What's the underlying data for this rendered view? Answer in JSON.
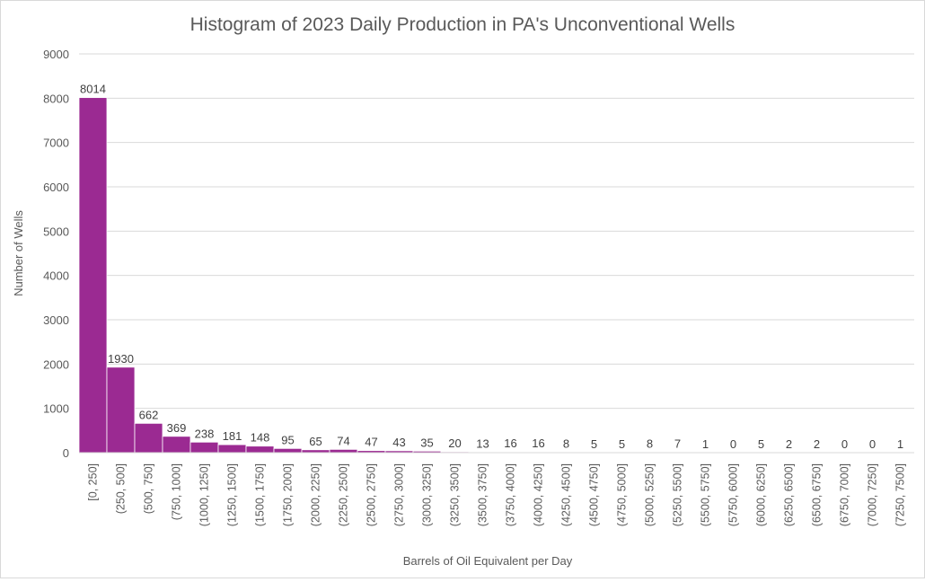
{
  "chart_data": {
    "type": "bar",
    "title": "Histogram of 2023 Daily Production in PA's Unconventional Wells",
    "xlabel": "Barrels of Oil Equivalent per Day",
    "ylabel": "Number of Wells",
    "ylim": [
      0,
      9000
    ],
    "yticks": [
      0,
      1000,
      2000,
      3000,
      4000,
      5000,
      6000,
      7000,
      8000,
      9000
    ],
    "grid": true,
    "legend": "none",
    "bar_color": "#9b2a92",
    "categories": [
      "[0, 250]",
      "(250, 500]",
      "(500, 750]",
      "(750, 1000]",
      "(1000, 1250]",
      "(1250, 1500]",
      "(1500, 1750]",
      "(1750, 2000]",
      "(2000, 2250]",
      "(2250, 2500]",
      "(2500, 2750]",
      "(2750, 3000]",
      "(3000, 3250]",
      "(3250, 3500]",
      "(3500, 3750]",
      "(3750, 4000]",
      "(4000, 4250]",
      "(4250, 4500]",
      "(4500, 4750]",
      "(4750, 5000]",
      "(5000, 5250]",
      "(5250, 5500]",
      "(5500, 5750]",
      "(5750, 6000]",
      "(6000, 6250]",
      "(6250, 6500]",
      "(6500, 6750]",
      "(6750, 7000]",
      "(7000, 7250]",
      "(7250, 7500]"
    ],
    "values": [
      8014,
      1930,
      662,
      369,
      238,
      181,
      148,
      95,
      65,
      74,
      47,
      43,
      35,
      20,
      13,
      16,
      16,
      8,
      5,
      5,
      8,
      7,
      1,
      0,
      5,
      2,
      2,
      0,
      0,
      1
    ]
  }
}
